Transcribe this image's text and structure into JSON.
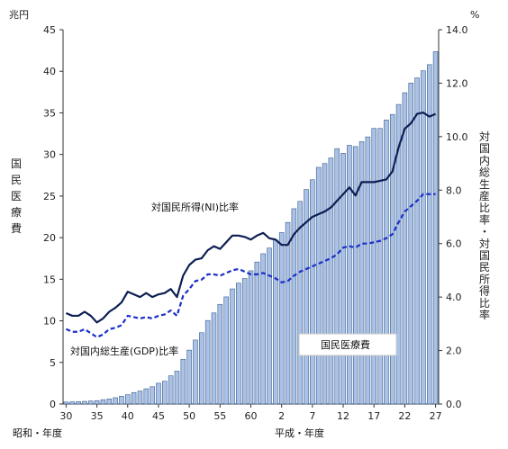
{
  "chart_data": {
    "type": "bar+line",
    "left_axis": {
      "unit": "兆円",
      "label": "国民医療費",
      "ylim": [
        0,
        45
      ],
      "ticks": [
        "0",
        "5",
        "10",
        "15",
        "20",
        "25",
        "30",
        "35",
        "40",
        "45"
      ]
    },
    "right_axis": {
      "unit": "%",
      "label": "対国内総生産比率・対国民所得比率",
      "ylim": [
        0,
        14
      ],
      "ticks": [
        "0.0",
        "2.0",
        "4.0",
        "6.0",
        "8.0",
        "10.0",
        "12.0",
        "14.0"
      ]
    },
    "x_axis": {
      "tick_labels": [
        "30",
        "35",
        "40",
        "45",
        "50",
        "55",
        "60",
        "2",
        "7",
        "12",
        "17",
        "22",
        "27"
      ],
      "left_label": "昭和・年度",
      "right_label": "平成・年度"
    },
    "categories": [
      "S30",
      "S31",
      "S32",
      "S33",
      "S34",
      "S35",
      "S36",
      "S37",
      "S38",
      "S39",
      "S40",
      "S41",
      "S42",
      "S43",
      "S44",
      "S45",
      "S46",
      "S47",
      "S48",
      "S49",
      "S50",
      "S51",
      "S52",
      "S53",
      "S54",
      "S55",
      "S56",
      "S57",
      "S58",
      "S59",
      "S60",
      "S61",
      "S62",
      "S63",
      "H1",
      "H2",
      "H3",
      "H4",
      "H5",
      "H6",
      "H7",
      "H8",
      "H9",
      "H10",
      "H11",
      "H12",
      "H13",
      "H14",
      "H15",
      "H16",
      "H17",
      "H18",
      "H19",
      "H20",
      "H21",
      "H22",
      "H23",
      "H24",
      "H25",
      "H26",
      "H27"
    ],
    "series": [
      {
        "name": "国民医療費",
        "axis": "left",
        "style": "bar",
        "color": "#aac2e6",
        "values": [
          0.24,
          0.26,
          0.29,
          0.32,
          0.36,
          0.41,
          0.52,
          0.61,
          0.76,
          0.94,
          1.12,
          1.38,
          1.56,
          1.83,
          2.08,
          2.5,
          2.74,
          3.39,
          3.95,
          5.38,
          6.48,
          7.69,
          8.57,
          10.04,
          10.95,
          11.98,
          12.88,
          13.84,
          14.54,
          15.09,
          16.02,
          17.07,
          18.07,
          18.75,
          19.73,
          20.61,
          21.83,
          23.48,
          24.36,
          25.79,
          26.96,
          28.45,
          28.91,
          29.58,
          30.7,
          30.14,
          31.1,
          30.95,
          31.54,
          32.11,
          33.13,
          33.13,
          34.14,
          34.81,
          36.01,
          37.42,
          38.59,
          39.21,
          40.06,
          40.8,
          42.36
        ]
      },
      {
        "name": "対国民所得(NI)比率",
        "axis": "right",
        "style": "solid",
        "color": "#0d1f52",
        "values": [
          3.4,
          3.3,
          3.3,
          3.45,
          3.3,
          3.05,
          3.2,
          3.45,
          3.6,
          3.8,
          4.2,
          4.1,
          4.0,
          4.15,
          4.0,
          4.1,
          4.15,
          4.3,
          4.0,
          4.8,
          5.2,
          5.4,
          5.45,
          5.75,
          5.9,
          5.8,
          6.05,
          6.3,
          6.3,
          6.25,
          6.15,
          6.3,
          6.4,
          6.2,
          6.15,
          5.95,
          5.95,
          6.35,
          6.6,
          6.8,
          7.0,
          7.1,
          7.2,
          7.35,
          7.6,
          7.85,
          8.1,
          7.8,
          8.3,
          8.3,
          8.3,
          8.35,
          8.4,
          8.7,
          9.6,
          10.3,
          10.5,
          10.85,
          10.9,
          10.75,
          10.85
        ]
      },
      {
        "name": "対国内総生産(GDP)比率",
        "axis": "right",
        "style": "dashed",
        "color": "#1c2fc7",
        "values": [
          2.8,
          2.7,
          2.7,
          2.8,
          2.65,
          2.5,
          2.6,
          2.8,
          2.85,
          2.95,
          3.3,
          3.25,
          3.2,
          3.25,
          3.2,
          3.3,
          3.35,
          3.5,
          3.3,
          4.05,
          4.3,
          4.6,
          4.65,
          4.85,
          4.85,
          4.8,
          4.9,
          5.0,
          5.05,
          4.95,
          4.85,
          4.85,
          4.9,
          4.8,
          4.7,
          4.55,
          4.6,
          4.8,
          4.95,
          5.05,
          5.15,
          5.25,
          5.35,
          5.45,
          5.6,
          5.85,
          5.9,
          5.85,
          6.0,
          6.0,
          6.05,
          6.1,
          6.2,
          6.35,
          6.8,
          7.2,
          7.4,
          7.6,
          7.85,
          7.85,
          7.85
        ]
      }
    ],
    "annotations": [
      {
        "text": "対国民所得(NI)比率"
      },
      {
        "text": "対国内総生産(GDP)比率"
      },
      {
        "text": "国民医療費"
      }
    ]
  }
}
